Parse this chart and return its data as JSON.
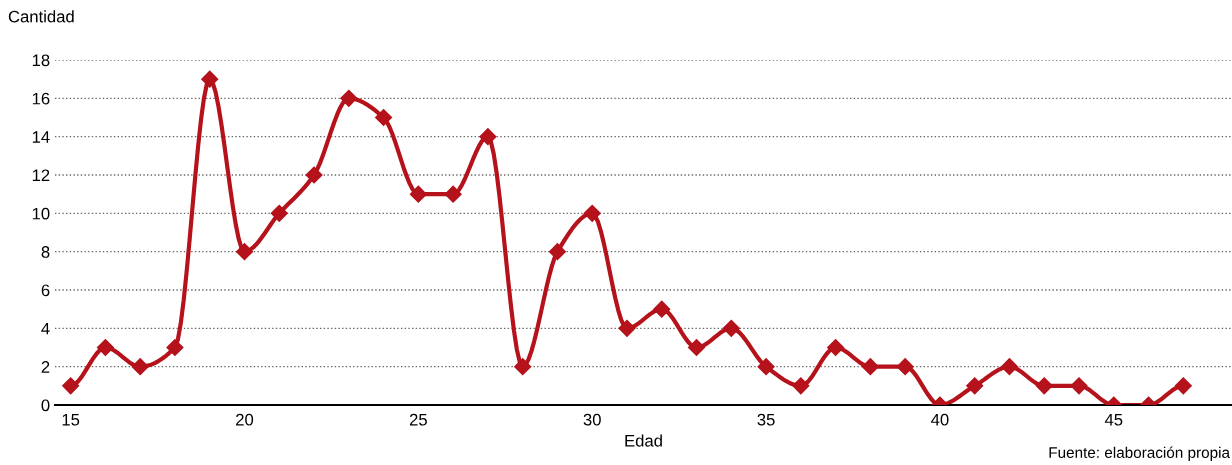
{
  "chart_data": {
    "type": "line",
    "xlabel": "Edad",
    "ylabel": "Cantidad",
    "x": [
      15,
      16,
      17,
      18,
      19,
      20,
      21,
      22,
      23,
      24,
      25,
      26,
      27,
      28,
      29,
      30,
      31,
      32,
      33,
      34,
      35,
      36,
      37,
      38,
      39,
      40,
      41,
      42,
      43,
      44,
      45,
      46,
      47
    ],
    "series": [
      {
        "color": "#b5121b",
        "values": [
          1,
          3,
          2,
          3,
          17,
          8,
          10,
          12,
          16,
          15,
          11,
          11,
          14,
          2,
          8,
          10,
          4,
          5,
          3,
          4,
          2,
          1,
          3,
          2,
          2,
          0,
          1,
          2,
          1,
          1,
          0,
          0,
          1
        ]
      }
    ],
    "xlim": [
      14.55,
      48.4
    ],
    "xticks": [
      15,
      20,
      25,
      30,
      35,
      40,
      45
    ],
    "ylim": [
      0,
      18
    ],
    "yticks": [
      0,
      2,
      4,
      6,
      8,
      10,
      12,
      14,
      16,
      18
    ],
    "grid": "y",
    "marker": "diamond",
    "line_style": "solid",
    "legend": false,
    "annotations": [
      "Fuente: elaboración propia"
    ]
  }
}
